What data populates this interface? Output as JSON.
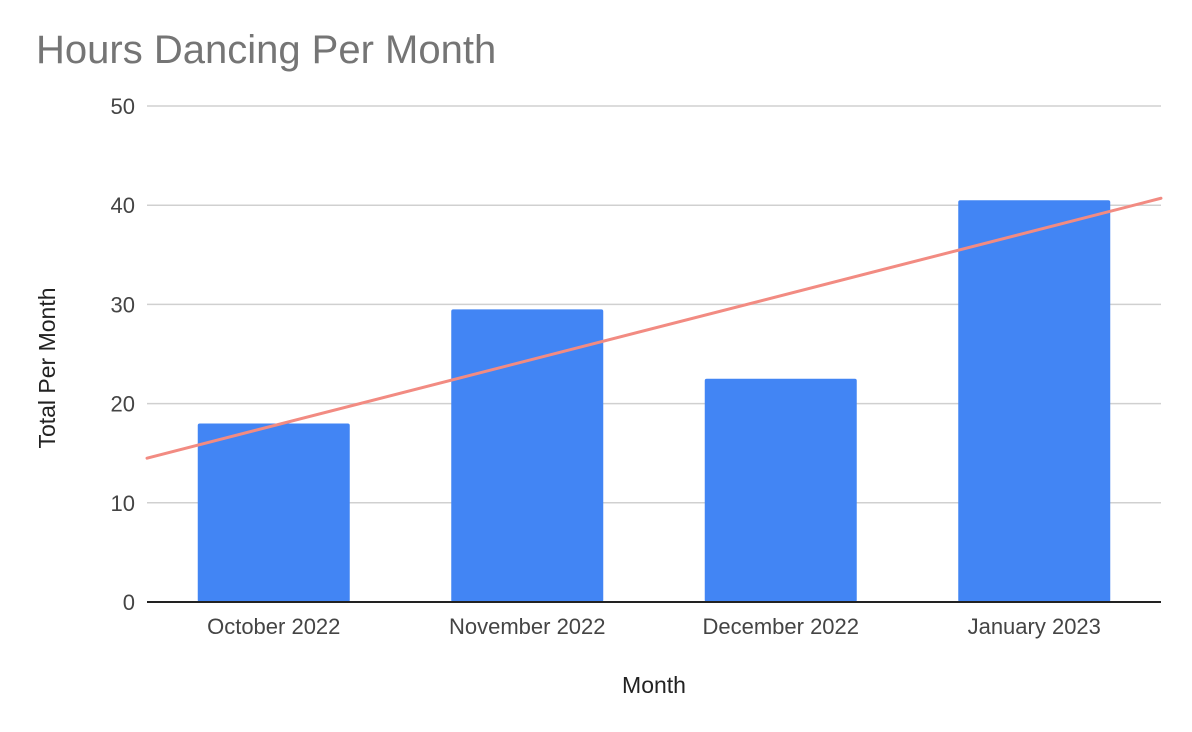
{
  "chart_data": {
    "type": "bar",
    "title": "Hours Dancing Per Month",
    "xlabel": "Month",
    "ylabel": "Total Per Month",
    "categories": [
      "October 2022",
      "November 2022",
      "December 2022",
      "January 2023"
    ],
    "series": [
      {
        "values": [
          18,
          29.5,
          22.5,
          40.5
        ]
      }
    ],
    "trendline": {
      "type": "linear",
      "start": 14.5,
      "end": 40.7
    },
    "ylim": [
      0,
      50
    ],
    "yticks": [
      0,
      10,
      20,
      30,
      40,
      50
    ],
    "grid": true,
    "legend": "none",
    "colors": {
      "bar": "#4285f4",
      "trendline": "#f28b82",
      "grid": "#d0d0d0",
      "axis": "#222222"
    }
  }
}
